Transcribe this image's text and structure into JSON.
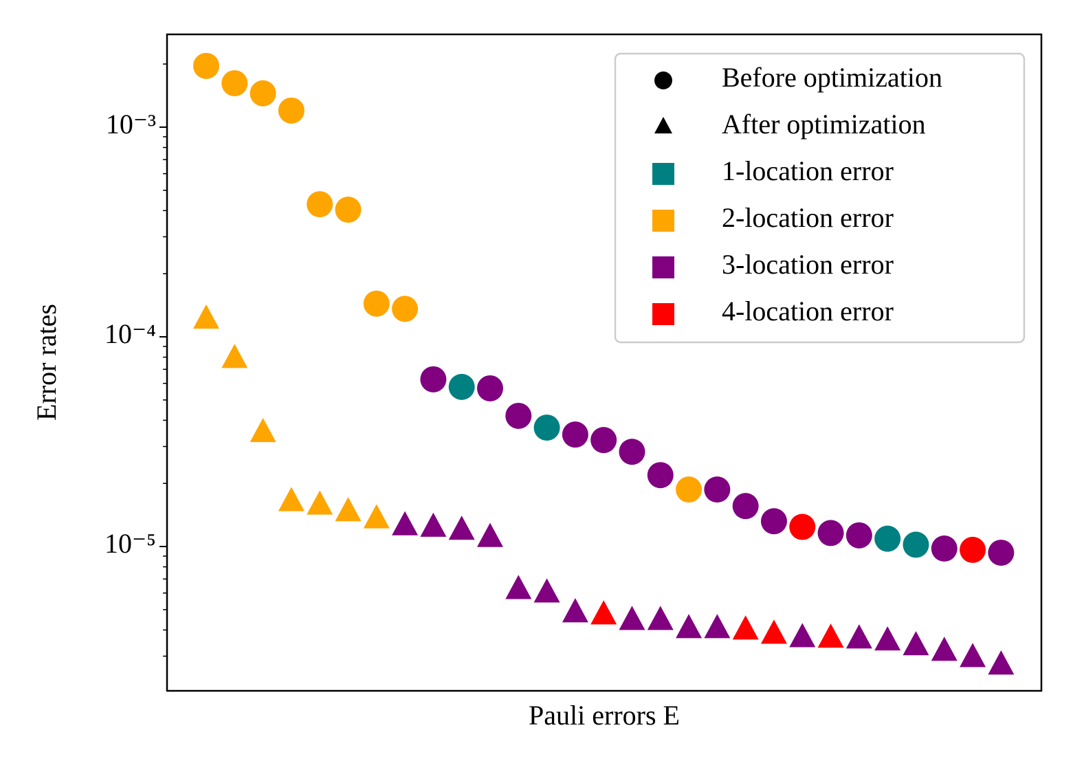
{
  "chart_data": {
    "type": "scatter",
    "ylabel": "Error rates",
    "xlabel": "Pauli errors E",
    "categories": [
      null,
      null,
      null,
      null,
      null,
      null,
      null,
      null,
      null,
      null,
      null,
      null,
      null,
      null,
      null,
      null,
      null,
      null,
      null,
      null,
      null,
      null,
      null,
      null,
      null,
      null,
      null,
      null,
      null
    ],
    "yscale": "log",
    "ylim": [
      2.05e-06,
      0.00277
    ],
    "yticks": [
      {
        "value": 0.001,
        "label": "10⁻³"
      },
      {
        "value": 0.0001,
        "label": "10⁻⁴"
      },
      {
        "value": 1e-05,
        "label": "10⁻⁵"
      }
    ],
    "minor_yticks": [
      3e-06,
      4e-06,
      5e-06,
      6e-06,
      7e-06,
      8e-06,
      9e-06,
      2e-05,
      3e-05,
      4e-05,
      5e-05,
      6e-05,
      7e-05,
      8e-05,
      9e-05,
      0.0002,
      0.0003,
      0.0004,
      0.0005,
      0.0006,
      0.0007,
      0.0008,
      0.0009,
      0.002
    ],
    "legend_position": "upper right",
    "series": [
      {
        "name": "Before optimization",
        "marker": "circle",
        "color": "#000000",
        "values": [
          0.00196,
          0.00162,
          0.00145,
          0.0012,
          0.000429,
          0.000404,
          0.000144,
          0.000136,
          6.27e-05,
          5.77e-05,
          5.68e-05,
          4.2e-05,
          3.69e-05,
          3.42e-05,
          3.22e-05,
          2.83e-05,
          2.19e-05,
          1.87e-05,
          1.87e-05,
          1.56e-05,
          1.32e-05,
          1.24e-05,
          1.16e-05,
          1.13e-05,
          1.09e-05,
          1.02e-05,
          9.78e-06,
          9.64e-06,
          9.34e-06
        ],
        "point_colors": [
          "#ffa500",
          "#ffa500",
          "#ffa500",
          "#ffa500",
          "#ffa500",
          "#ffa500",
          "#ffa500",
          "#ffa500",
          "#800080",
          "#008080",
          "#800080",
          "#800080",
          "#008080",
          "#800080",
          "#800080",
          "#800080",
          "#800080",
          "#ffa500",
          "#800080",
          "#800080",
          "#800080",
          "#ff0000",
          "#800080",
          "#800080",
          "#008080",
          "#008080",
          "#800080",
          "#ff0000",
          "#800080"
        ]
      },
      {
        "name": "After optimization",
        "marker": "triangle",
        "color": "#000000",
        "values": [
          0.000121,
          7.85e-05,
          3.48e-05,
          1.63e-05,
          1.57e-05,
          1.46e-05,
          1.35e-05,
          1.25e-05,
          1.23e-05,
          1.19e-05,
          1.1e-05,
          6.21e-06,
          5.98e-06,
          4.81e-06,
          4.7e-06,
          4.42e-06,
          4.42e-06,
          4.04e-06,
          4.04e-06,
          3.98e-06,
          3.8e-06,
          3.66e-06,
          3.64e-06,
          3.61e-06,
          3.53e-06,
          3.35e-06,
          3.15e-06,
          2.94e-06,
          2.71e-06
        ],
        "point_colors": [
          "#ffa500",
          "#ffa500",
          "#ffa500",
          "#ffa500",
          "#ffa500",
          "#ffa500",
          "#ffa500",
          "#800080",
          "#800080",
          "#800080",
          "#800080",
          "#800080",
          "#800080",
          "#800080",
          "#ff0000",
          "#800080",
          "#800080",
          "#800080",
          "#800080",
          "#ff0000",
          "#ff0000",
          "#800080",
          "#ff0000",
          "#800080",
          "#800080",
          "#800080",
          "#800080",
          "#800080",
          "#800080"
        ]
      }
    ],
    "color_legend": [
      {
        "name": "1-location error",
        "color": "#008080"
      },
      {
        "name": "2-location error",
        "color": "#ffa500"
      },
      {
        "name": "3-location error",
        "color": "#800080"
      },
      {
        "name": "4-location error",
        "color": "#ff0000"
      }
    ]
  }
}
